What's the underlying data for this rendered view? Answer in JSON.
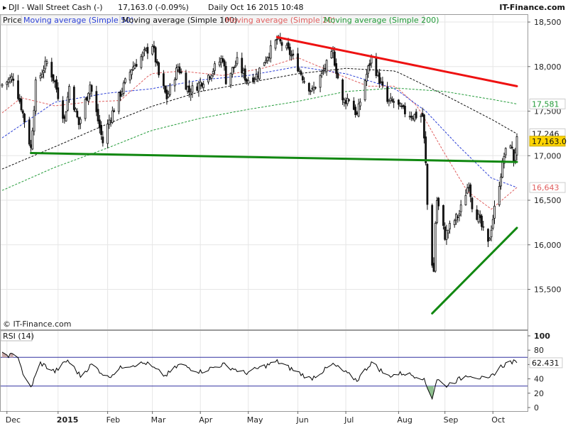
{
  "header": {
    "symbol_label": "DJI - Wall Street Cash (-)",
    "price_change": "17,163.0 (-0.09%)",
    "period_time": "Daily  Oct 16 2015 10:48",
    "brand": "IT-Finance.com"
  },
  "colors": {
    "background": "#ffffff",
    "grid": "#e6e6e6",
    "candle_up": "#ffffff",
    "candle_down": "#111111",
    "ma20": "#e06060",
    "ma50": "#2b3fd6",
    "ma100": "#222222",
    "ma200": "#239b39",
    "trend_red": "#ee1111",
    "trend_green": "#118811",
    "rsi_line": "#000000",
    "rsi_band": "#3030a0",
    "rsi_fill_over": "#c8a8a8",
    "rsi_fill_under": "#8fc08f",
    "price_box": "#ffd400"
  },
  "legend": [
    {
      "label": "Price",
      "color": "#111111"
    },
    {
      "label": "Moving average (Simple 50)",
      "color": "#2b3fd6"
    },
    {
      "label": "Moving average (Simple 100)",
      "color": "#111111"
    },
    {
      "label": "Moving average (Simple 20)",
      "color": "#e06060"
    },
    {
      "label": "Moving average (Simple 200)",
      "color": "#239b39"
    }
  ],
  "watermark": "© IT-Finance.com",
  "rsi_panel_label": "RSI (14)",
  "chart_data": [
    {
      "type": "candlestick",
      "title": "DJI - Wall Street Cash (-)",
      "xlabel": "",
      "ylabel": "",
      "ylim": [
        15050,
        18580
      ],
      "grid": true,
      "ytick_labels": [
        "15,500",
        "16,000",
        "16,500",
        "17,000",
        "17,500",
        "18,000",
        "18,500"
      ],
      "ytick_values": [
        15500,
        16000,
        16500,
        17000,
        17500,
        18000,
        18500
      ],
      "xtick_labels": [
        "Dec",
        "2015",
        "Feb",
        "Mar",
        "Apr",
        "May",
        "Jun",
        "Jul",
        "Aug",
        "Sep",
        "Oct"
      ],
      "xtick_bold": [
        false,
        true,
        false,
        false,
        false,
        false,
        false,
        false,
        false,
        false,
        false
      ],
      "xtick_dates": [
        "2014-12-01",
        "2015-01-02",
        "2015-02-02",
        "2015-03-02",
        "2015-04-01",
        "2015-05-01",
        "2015-06-01",
        "2015-07-01",
        "2015-08-03",
        "2015-09-01",
        "2015-10-01"
      ],
      "x_range": [
        "2014-11-28",
        "2015-10-16"
      ],
      "close_keypoints": [
        {
          "date": "2014-11-28",
          "close": 17800
        },
        {
          "date": "2014-12-05",
          "close": 17880
        },
        {
          "date": "2014-12-10",
          "close": 17550
        },
        {
          "date": "2014-12-16",
          "close": 17080
        },
        {
          "date": "2014-12-19",
          "close": 17800
        },
        {
          "date": "2014-12-26",
          "close": 18050
        },
        {
          "date": "2014-12-31",
          "close": 17820
        },
        {
          "date": "2015-01-06",
          "close": 17400
        },
        {
          "date": "2015-01-09",
          "close": 17780
        },
        {
          "date": "2015-01-15",
          "close": 17350
        },
        {
          "date": "2015-01-22",
          "close": 17800
        },
        {
          "date": "2015-01-30",
          "close": 17150
        },
        {
          "date": "2015-02-03",
          "close": 17400
        },
        {
          "date": "2015-02-10",
          "close": 17700
        },
        {
          "date": "2015-02-17",
          "close": 17980
        },
        {
          "date": "2015-02-25",
          "close": 18150
        },
        {
          "date": "2015-03-02",
          "close": 18250
        },
        {
          "date": "2015-03-06",
          "close": 17900
        },
        {
          "date": "2015-03-11",
          "close": 17650
        },
        {
          "date": "2015-03-18",
          "close": 18000
        },
        {
          "date": "2015-03-25",
          "close": 17720
        },
        {
          "date": "2015-03-31",
          "close": 17800
        },
        {
          "date": "2015-04-06",
          "close": 17900
        },
        {
          "date": "2015-04-15",
          "close": 18100
        },
        {
          "date": "2015-04-17",
          "close": 17850
        },
        {
          "date": "2015-04-24",
          "close": 18050
        },
        {
          "date": "2015-04-30",
          "close": 17850
        },
        {
          "date": "2015-05-06",
          "close": 17900
        },
        {
          "date": "2015-05-12",
          "close": 18100
        },
        {
          "date": "2015-05-19",
          "close": 18300
        },
        {
          "date": "2015-05-22",
          "close": 18250
        },
        {
          "date": "2015-05-27",
          "close": 18150
        },
        {
          "date": "2015-06-01",
          "close": 18000
        },
        {
          "date": "2015-06-05",
          "close": 17850
        },
        {
          "date": "2015-06-10",
          "close": 17720
        },
        {
          "date": "2015-06-17",
          "close": 17950
        },
        {
          "date": "2015-06-23",
          "close": 18150
        },
        {
          "date": "2015-06-29",
          "close": 17600
        },
        {
          "date": "2015-07-03",
          "close": 17650
        },
        {
          "date": "2015-07-08",
          "close": 17450
        },
        {
          "date": "2015-07-13",
          "close": 17850
        },
        {
          "date": "2015-07-17",
          "close": 18100
        },
        {
          "date": "2015-07-22",
          "close": 17850
        },
        {
          "date": "2015-07-27",
          "close": 17600
        },
        {
          "date": "2015-07-31",
          "close": 17600
        },
        {
          "date": "2015-08-06",
          "close": 17500
        },
        {
          "date": "2015-08-12",
          "close": 17450
        },
        {
          "date": "2015-08-18",
          "close": 17450
        },
        {
          "date": "2015-08-20",
          "close": 16900
        },
        {
          "date": "2015-08-21",
          "close": 16450
        },
        {
          "date": "2015-08-24",
          "close": 15800
        },
        {
          "date": "2015-08-25",
          "close": 15700
        },
        {
          "date": "2015-08-26",
          "close": 16250
        },
        {
          "date": "2015-08-27",
          "close": 16500
        },
        {
          "date": "2015-09-01",
          "close": 16100
        },
        {
          "date": "2015-09-04",
          "close": 16200
        },
        {
          "date": "2015-09-10",
          "close": 16350
        },
        {
          "date": "2015-09-16",
          "close": 16700
        },
        {
          "date": "2015-09-18",
          "close": 16450
        },
        {
          "date": "2015-09-22",
          "close": 16300
        },
        {
          "date": "2015-09-28",
          "close": 16000
        },
        {
          "date": "2015-10-01",
          "close": 16300
        },
        {
          "date": "2015-10-05",
          "close": 16700
        },
        {
          "date": "2015-10-08",
          "close": 17000
        },
        {
          "date": "2015-10-12",
          "close": 17150
        },
        {
          "date": "2015-10-14",
          "close": 16950
        },
        {
          "date": "2015-10-16",
          "close": 17163
        }
      ],
      "moving_averages": [
        {
          "name": "Moving average (Simple 20)",
          "color": "#e06060",
          "style": "dashed",
          "points": [
            {
              "date": "2014-11-28",
              "v": 17480
            },
            {
              "date": "2014-12-10",
              "v": 17650
            },
            {
              "date": "2014-12-31",
              "v": 17560
            },
            {
              "date": "2015-01-20",
              "v": 17600
            },
            {
              "date": "2015-02-10",
              "v": 17620
            },
            {
              "date": "2015-03-01",
              "v": 17920
            },
            {
              "date": "2015-03-20",
              "v": 17950
            },
            {
              "date": "2015-04-15",
              "v": 17900
            },
            {
              "date": "2015-05-10",
              "v": 17980
            },
            {
              "date": "2015-06-01",
              "v": 18100
            },
            {
              "date": "2015-06-25",
              "v": 17920
            },
            {
              "date": "2015-07-15",
              "v": 17780
            },
            {
              "date": "2015-08-01",
              "v": 17780
            },
            {
              "date": "2015-08-15",
              "v": 17550
            },
            {
              "date": "2015-08-31",
              "v": 17050
            },
            {
              "date": "2015-09-15",
              "v": 16600
            },
            {
              "date": "2015-09-30",
              "v": 16400
            },
            {
              "date": "2015-10-16",
              "v": 16643
            }
          ]
        },
        {
          "name": "Moving average (Simple 50)",
          "color": "#2b3fd6",
          "style": "dashed",
          "points": [
            {
              "date": "2014-11-28",
              "v": 17200
            },
            {
              "date": "2014-12-31",
              "v": 17600
            },
            {
              "date": "2015-02-01",
              "v": 17700
            },
            {
              "date": "2015-03-01",
              "v": 17750
            },
            {
              "date": "2015-04-01",
              "v": 17850
            },
            {
              "date": "2015-05-01",
              "v": 17900
            },
            {
              "date": "2015-06-01",
              "v": 18000
            },
            {
              "date": "2015-07-01",
              "v": 17920
            },
            {
              "date": "2015-08-01",
              "v": 17750
            },
            {
              "date": "2015-08-20",
              "v": 17500
            },
            {
              "date": "2015-09-10",
              "v": 17100
            },
            {
              "date": "2015-09-30",
              "v": 16750
            },
            {
              "date": "2015-10-16",
              "v": 16643
            }
          ]
        },
        {
          "name": "Moving average (Simple 100)",
          "color": "#111111",
          "style": "dashed",
          "points": [
            {
              "date": "2014-11-28",
              "v": 16850
            },
            {
              "date": "2014-12-31",
              "v": 17100
            },
            {
              "date": "2015-02-01",
              "v": 17350
            },
            {
              "date": "2015-03-01",
              "v": 17550
            },
            {
              "date": "2015-04-01",
              "v": 17720
            },
            {
              "date": "2015-05-01",
              "v": 17820
            },
            {
              "date": "2015-06-01",
              "v": 17920
            },
            {
              "date": "2015-07-01",
              "v": 17980
            },
            {
              "date": "2015-08-01",
              "v": 17950
            },
            {
              "date": "2015-09-01",
              "v": 17680
            },
            {
              "date": "2015-10-01",
              "v": 17400
            },
            {
              "date": "2015-10-16",
              "v": 17246
            }
          ]
        },
        {
          "name": "Moving average (Simple 200)",
          "color": "#239b39",
          "style": "dashed",
          "points": [
            {
              "date": "2014-11-28",
              "v": 16610
            },
            {
              "date": "2014-12-31",
              "v": 16870
            },
            {
              "date": "2015-02-01",
              "v": 17080
            },
            {
              "date": "2015-03-01",
              "v": 17280
            },
            {
              "date": "2015-04-01",
              "v": 17420
            },
            {
              "date": "2015-05-01",
              "v": 17520
            },
            {
              "date": "2015-06-01",
              "v": 17610
            },
            {
              "date": "2015-07-01",
              "v": 17720
            },
            {
              "date": "2015-08-01",
              "v": 17760
            },
            {
              "date": "2015-09-01",
              "v": 17720
            },
            {
              "date": "2015-10-01",
              "v": 17630
            },
            {
              "date": "2015-10-16",
              "v": 17581
            }
          ]
        }
      ],
      "trendlines": [
        {
          "color": "#ee1111",
          "from": {
            "date": "2015-05-19",
            "v": 18330
          },
          "to": {
            "date": "2015-10-16",
            "v": 17780
          }
        },
        {
          "color": "#118811",
          "from": {
            "date": "2014-12-16",
            "v": 17030
          },
          "to": {
            "date": "2015-10-16",
            "v": 16930
          }
        },
        {
          "color": "#118811",
          "from": {
            "date": "2015-08-24",
            "v": 15230
          },
          "to": {
            "date": "2015-10-16",
            "v": 16190
          }
        }
      ],
      "right_axis_labels": [
        {
          "text": "17,581",
          "value": 17581,
          "color": "#239b39"
        },
        {
          "text": "17,246",
          "value": 17246,
          "color": "#111111"
        },
        {
          "text": "17,163.0",
          "value": 17163,
          "color": "#111111",
          "box": "#ffd400"
        },
        {
          "text": "16,643",
          "value": 16643,
          "color": "#e06060"
        }
      ]
    },
    {
      "type": "line",
      "title": "RSI (14)",
      "ylim": [
        0,
        100
      ],
      "ytick_labels": [
        "0",
        "20",
        "40",
        "60",
        "80",
        "100"
      ],
      "ytick_values": [
        0,
        20,
        40,
        60,
        80,
        100
      ],
      "bands": [
        70,
        30
      ],
      "last_value_label": "62.431",
      "last_value": 62.431,
      "keypoints": [
        {
          "date": "2014-11-28",
          "v": 74
        },
        {
          "date": "2014-12-08",
          "v": 72
        },
        {
          "date": "2014-12-12",
          "v": 40
        },
        {
          "date": "2014-12-16",
          "v": 28
        },
        {
          "date": "2014-12-22",
          "v": 62
        },
        {
          "date": "2014-12-31",
          "v": 50
        },
        {
          "date": "2015-01-08",
          "v": 66
        },
        {
          "date": "2015-01-16",
          "v": 44
        },
        {
          "date": "2015-01-23",
          "v": 60
        },
        {
          "date": "2015-02-02",
          "v": 42
        },
        {
          "date": "2015-02-12",
          "v": 58
        },
        {
          "date": "2015-02-26",
          "v": 62
        },
        {
          "date": "2015-03-10",
          "v": 44
        },
        {
          "date": "2015-03-19",
          "v": 60
        },
        {
          "date": "2015-04-01",
          "v": 50
        },
        {
          "date": "2015-04-15",
          "v": 60
        },
        {
          "date": "2015-04-29",
          "v": 48
        },
        {
          "date": "2015-05-19",
          "v": 64
        },
        {
          "date": "2015-06-09",
          "v": 40
        },
        {
          "date": "2015-06-23",
          "v": 60
        },
        {
          "date": "2015-07-08",
          "v": 38
        },
        {
          "date": "2015-07-17",
          "v": 63
        },
        {
          "date": "2015-07-27",
          "v": 44
        },
        {
          "date": "2015-08-06",
          "v": 48
        },
        {
          "date": "2015-08-18",
          "v": 42
        },
        {
          "date": "2015-08-24",
          "v": 14
        },
        {
          "date": "2015-08-27",
          "v": 40
        },
        {
          "date": "2015-09-01",
          "v": 30
        },
        {
          "date": "2015-09-16",
          "v": 46
        },
        {
          "date": "2015-09-28",
          "v": 38
        },
        {
          "date": "2015-10-05",
          "v": 56
        },
        {
          "date": "2015-10-12",
          "v": 64
        },
        {
          "date": "2015-10-16",
          "v": 62.431
        }
      ]
    }
  ]
}
